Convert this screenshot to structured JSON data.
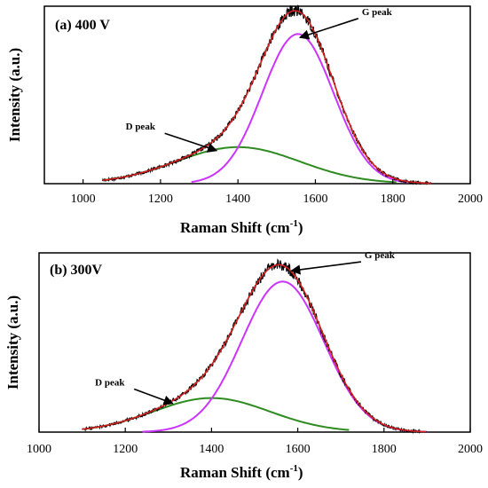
{
  "chart_data": [
    {
      "type": "line",
      "panel_label": "(a) 400 V",
      "xlabel": "Raman Shift (cm",
      "xlabel_sup": "-1",
      "xlabel_close": ")",
      "ylabel": "Intensity (a.u.)",
      "xlim": [
        900,
        2000
      ],
      "ylim": [
        0,
        1.02
      ],
      "xticks": [
        1000,
        1200,
        1400,
        1600,
        1800,
        2000
      ],
      "grid": false,
      "colors": {
        "raw": "#000000",
        "fit": "#d62020",
        "g_peak": "#cc33ff",
        "d_peak": "#2e8b1f"
      },
      "g_peak": {
        "center": 1555,
        "height": 0.86,
        "sigma": 92,
        "range": [
          1280,
          1840
        ]
      },
      "d_peak": {
        "center": 1400,
        "height": 0.21,
        "sigma": 160,
        "range": [
          1050,
          1810
        ]
      },
      "raw_range": [
        1050,
        1900
      ],
      "annotations": [
        {
          "text": "G peak",
          "target": [
            1560,
            0.84
          ],
          "text_pos": [
            1720,
            0.97
          ]
        },
        {
          "text": "D peak",
          "target": [
            1345,
            0.19
          ],
          "text_pos": [
            1110,
            0.31
          ]
        }
      ]
    },
    {
      "type": "line",
      "panel_label": "(b) 300V",
      "xlabel": "Raman Shift (cm",
      "xlabel_sup": "-1",
      "xlabel_close": ")",
      "ylabel": "Intensity (a.u.)",
      "xlim": [
        1000,
        2000
      ],
      "ylim": [
        0,
        1.0
      ],
      "xticks": [
        1000,
        1200,
        1400,
        1600,
        1800,
        2000
      ],
      "grid": false,
      "colors": {
        "raw": "#000000",
        "fit": "#d62020",
        "g_peak": "#cc33ff",
        "d_peak": "#2e8b1f"
      },
      "g_peak": {
        "center": 1565,
        "height": 0.84,
        "sigma": 95,
        "range": [
          1240,
          1900
        ]
      },
      "d_peak": {
        "center": 1400,
        "height": 0.19,
        "sigma": 135,
        "range": [
          1110,
          1720
        ]
      },
      "raw_range": [
        1100,
        1900
      ],
      "annotations": [
        {
          "text": "G peak",
          "target": [
            1585,
            0.9
          ],
          "text_pos": [
            1755,
            0.97
          ]
        },
        {
          "text": "D peak",
          "target": [
            1310,
            0.16
          ],
          "text_pos": [
            1130,
            0.26
          ]
        }
      ]
    }
  ]
}
